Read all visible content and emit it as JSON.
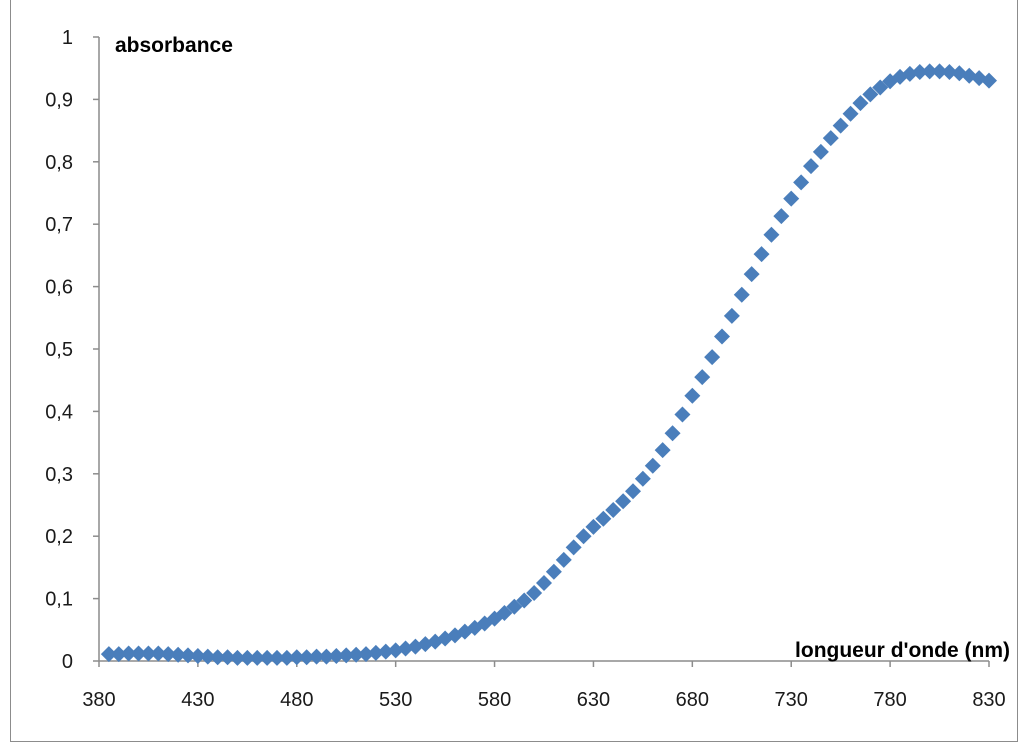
{
  "chart_data": {
    "type": "scatter",
    "title": "",
    "xlabel": "longueur d'onde (nm)",
    "ylabel": "absorbance",
    "xlim": [
      380,
      830
    ],
    "ylim": [
      0,
      1
    ],
    "x_ticks": [
      "380",
      "430",
      "480",
      "530",
      "580",
      "630",
      "680",
      "730",
      "780",
      "830"
    ],
    "y_ticks": [
      "0",
      "0,1",
      "0,2",
      "0,3",
      "0,4",
      "0,5",
      "0,6",
      "0,7",
      "0,8",
      "0,9",
      "1"
    ],
    "grid": false,
    "marker": "diamond",
    "color": "#4a7ebb",
    "series": [
      {
        "x": [
          385,
          390,
          395,
          400,
          405,
          410,
          415,
          420,
          425,
          430,
          435,
          440,
          445,
          450,
          455,
          460,
          465,
          470,
          475,
          480,
          485,
          490,
          495,
          500,
          505,
          510,
          515,
          520,
          525,
          530,
          535,
          540,
          545,
          550,
          555,
          560,
          565,
          570,
          575,
          580,
          585,
          590,
          595,
          600,
          605,
          610,
          615,
          620,
          625,
          630,
          635,
          640,
          645,
          650,
          655,
          660,
          665,
          670,
          675,
          680,
          685,
          690,
          695,
          700,
          705,
          710,
          715,
          720,
          725,
          730,
          735,
          740,
          745,
          750,
          755,
          760,
          765,
          770,
          775,
          780,
          785,
          790,
          795,
          800,
          805,
          810,
          815,
          820,
          825,
          830
        ],
        "y": [
          0.011,
          0.011,
          0.012,
          0.012,
          0.012,
          0.012,
          0.011,
          0.01,
          0.009,
          0.008,
          0.007,
          0.006,
          0.006,
          0.005,
          0.005,
          0.005,
          0.005,
          0.005,
          0.005,
          0.006,
          0.006,
          0.007,
          0.007,
          0.008,
          0.009,
          0.01,
          0.011,
          0.013,
          0.015,
          0.017,
          0.02,
          0.023,
          0.027,
          0.031,
          0.036,
          0.041,
          0.047,
          0.053,
          0.06,
          0.068,
          0.077,
          0.087,
          0.097,
          0.109,
          0.125,
          0.143,
          0.162,
          0.182,
          0.2,
          0.215,
          0.228,
          0.242,
          0.256,
          0.272,
          0.292,
          0.313,
          0.338,
          0.365,
          0.395,
          0.425,
          0.455,
          0.487,
          0.52,
          0.553,
          0.587,
          0.62,
          0.652,
          0.683,
          0.713,
          0.741,
          0.767,
          0.793,
          0.816,
          0.838,
          0.858,
          0.877,
          0.894,
          0.908,
          0.919,
          0.929,
          0.936,
          0.941,
          0.944,
          0.945,
          0.945,
          0.944,
          0.942,
          0.938,
          0.934,
          0.93
        ]
      }
    ]
  }
}
